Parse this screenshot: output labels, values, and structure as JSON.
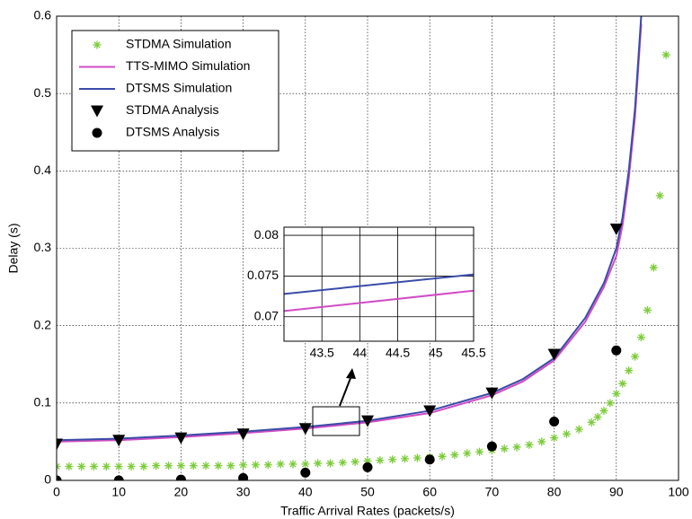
{
  "chart_data": [
    {
      "type": "line",
      "xlabel": "Traffic Arrival Rates (packets/s)",
      "ylabel": "Delay (s)",
      "xlim": [
        0,
        100
      ],
      "ylim": [
        0,
        0.6
      ],
      "xticks": [
        0,
        10,
        20,
        30,
        40,
        50,
        60,
        70,
        80,
        90,
        100
      ],
      "yticks": [
        0,
        0.1,
        0.2,
        0.3,
        0.4,
        0.5,
        0.6
      ],
      "grid": true,
      "legend": "upper left",
      "series": [
        {
          "name": "STDMA Simulation",
          "color": "#7ccc3a",
          "marker": "asterisk",
          "x": [
            0,
            2,
            4,
            6,
            8,
            10,
            12,
            14,
            16,
            18,
            20,
            22,
            24,
            26,
            28,
            30,
            32,
            34,
            36,
            38,
            40,
            42,
            44,
            46,
            48,
            50,
            52,
            54,
            56,
            58,
            60,
            62,
            64,
            66,
            68,
            70,
            72,
            74,
            76,
            78,
            80,
            82,
            84,
            86,
            87,
            88,
            89,
            90,
            91,
            92,
            93,
            94,
            95,
            96,
            97,
            98
          ],
          "values": [
            0.018,
            0.018,
            0.018,
            0.018,
            0.018,
            0.018,
            0.018,
            0.018,
            0.019,
            0.019,
            0.019,
            0.019,
            0.019,
            0.019,
            0.019,
            0.02,
            0.02,
            0.02,
            0.021,
            0.021,
            0.021,
            0.022,
            0.022,
            0.023,
            0.024,
            0.025,
            0.026,
            0.027,
            0.028,
            0.029,
            0.03,
            0.031,
            0.033,
            0.035,
            0.037,
            0.039,
            0.041,
            0.043,
            0.046,
            0.05,
            0.055,
            0.06,
            0.066,
            0.075,
            0.082,
            0.09,
            0.1,
            0.112,
            0.125,
            0.142,
            0.16,
            0.185,
            0.22,
            0.275,
            0.368,
            0.55
          ]
        },
        {
          "name": "TTS-MIMO Simulation",
          "color": "#d04cc4",
          "marker": "line",
          "x": [
            0,
            10,
            20,
            30,
            40,
            50,
            60,
            70,
            75,
            80,
            85,
            88,
            90,
            91,
            92,
            93,
            94
          ],
          "values": [
            0.05,
            0.052,
            0.056,
            0.061,
            0.067,
            0.075,
            0.087,
            0.11,
            0.128,
            0.155,
            0.205,
            0.25,
            0.29,
            0.33,
            0.39,
            0.47,
            0.59
          ]
        },
        {
          "name": "DTSMS Simulation",
          "color": "#3a4ca8",
          "marker": "line",
          "x": [
            0,
            10,
            20,
            30,
            40,
            50,
            60,
            70,
            75,
            80,
            85,
            88,
            90,
            91,
            92,
            93,
            94
          ],
          "values": [
            0.052,
            0.054,
            0.058,
            0.063,
            0.069,
            0.077,
            0.09,
            0.113,
            0.131,
            0.158,
            0.21,
            0.255,
            0.3,
            0.34,
            0.4,
            0.48,
            0.6
          ]
        },
        {
          "name": "STDMA Analysis",
          "color": "#000000",
          "marker": "triangle",
          "x": [
            0,
            10,
            20,
            30,
            40,
            50,
            60,
            70,
            80,
            90
          ],
          "values": [
            0.047,
            0.052,
            0.055,
            0.06,
            0.067,
            0.077,
            0.09,
            0.113,
            0.163,
            0.325
          ]
        },
        {
          "name": "DTSMS Analysis",
          "color": "#000000",
          "marker": "circle",
          "x": [
            0,
            10,
            20,
            30,
            40,
            50,
            60,
            70,
            80,
            90
          ],
          "values": [
            0.0,
            0.0,
            0.001,
            0.003,
            0.01,
            0.017,
            0.027,
            0.044,
            0.076,
            0.168
          ]
        }
      ]
    },
    {
      "type": "line",
      "xlim": [
        43,
        45.5
      ],
      "ylim": [
        0.067,
        0.081
      ],
      "xticks": [
        43.5,
        44,
        44.5,
        45,
        45.5
      ],
      "yticks": [
        0.07,
        0.075,
        0.08
      ],
      "grid": true,
      "series": [
        {
          "color": "#d04cc4",
          "x": [
            43,
            45.5
          ],
          "values": [
            0.0707,
            0.0732
          ]
        },
        {
          "color": "#3a4ca8",
          "x": [
            43,
            45.5
          ],
          "values": [
            0.0728,
            0.0752
          ]
        }
      ]
    }
  ]
}
